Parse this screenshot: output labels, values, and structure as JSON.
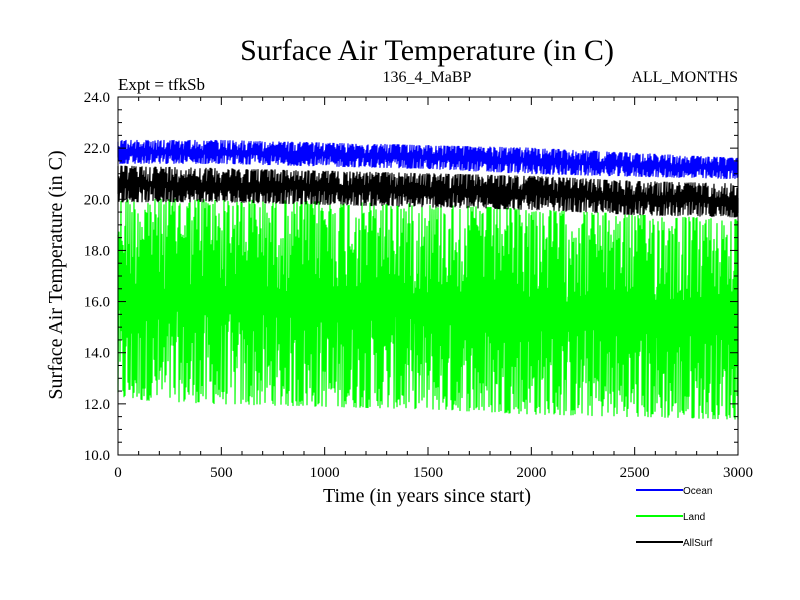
{
  "chart_data": {
    "type": "line",
    "title": "Surface Air Temperature (in C)",
    "subtitle_left": "Expt = tfkSb",
    "subtitle_center": "136_4_MaBP",
    "subtitle_right": "ALL_MONTHS",
    "xlabel": "Time (in years since start)",
    "ylabel": "Surface Air Temperature (in C)",
    "xlim": [
      0,
      3000
    ],
    "ylim": [
      10,
      24
    ],
    "x_ticks": [
      0,
      500,
      1000,
      1500,
      2000,
      2500,
      3000
    ],
    "x_tick_labels": [
      "0",
      "500",
      "1000",
      "1500",
      "2000",
      "2500",
      "3000"
    ],
    "y_ticks": [
      10,
      12,
      14,
      16,
      18,
      20,
      22,
      24
    ],
    "y_tick_labels": [
      "10.0",
      "12.0",
      "14.0",
      "16.0",
      "18.0",
      "20.0",
      "22.0",
      "24.0"
    ],
    "legend_position": "bottom-right",
    "series": [
      {
        "name": "Ocean",
        "color": "#0000ff",
        "x": [
          0,
          500,
          1000,
          1500,
          2000,
          2500,
          3000
        ],
        "y_min": [
          21.4,
          21.4,
          21.3,
          21.2,
          21.0,
          20.9,
          20.8
        ],
        "y_max": [
          22.3,
          22.3,
          22.2,
          22.1,
          22.0,
          21.8,
          21.6
        ]
      },
      {
        "name": "Land",
        "color": "#00ff00",
        "x": [
          0,
          500,
          1000,
          1500,
          2000,
          2500,
          3000
        ],
        "y_min": [
          12.2,
          12.0,
          11.9,
          11.8,
          11.6,
          11.5,
          11.4
        ],
        "y_max": [
          20.0,
          20.0,
          19.9,
          19.8,
          19.6,
          19.4,
          19.2
        ]
      },
      {
        "name": "AllSurf",
        "color": "#000000",
        "x": [
          0,
          500,
          1000,
          1500,
          2000,
          2500,
          3000
        ],
        "y_min": [
          19.9,
          19.9,
          19.8,
          19.7,
          19.6,
          19.4,
          19.3
        ],
        "y_max": [
          21.3,
          21.2,
          21.1,
          21.0,
          20.9,
          20.7,
          20.6
        ]
      }
    ]
  }
}
